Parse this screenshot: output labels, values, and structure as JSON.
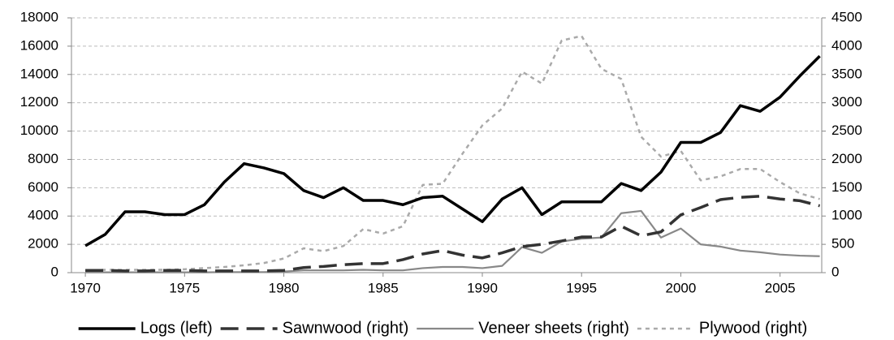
{
  "chart_data": {
    "type": "line",
    "x": [
      1970,
      1971,
      1972,
      1973,
      1974,
      1975,
      1976,
      1977,
      1978,
      1979,
      1980,
      1981,
      1982,
      1983,
      1984,
      1985,
      1986,
      1987,
      1988,
      1989,
      1990,
      1991,
      1992,
      1993,
      1994,
      1995,
      1996,
      1997,
      1998,
      1999,
      2000,
      2001,
      2002,
      2003,
      2004,
      2005,
      2006,
      2007
    ],
    "xlim": [
      1969.3,
      2007.1
    ],
    "xticks": [
      1970,
      1975,
      1980,
      1985,
      1990,
      1995,
      2000,
      2005
    ],
    "ylim": [
      0,
      18000
    ],
    "yticks": [
      0,
      2000,
      4000,
      6000,
      8000,
      10000,
      12000,
      14000,
      16000,
      18000
    ],
    "y2lim": [
      0,
      4500
    ],
    "y2ticks": [
      0,
      500,
      1000,
      1500,
      2000,
      2500,
      3000,
      3500,
      4000,
      4500
    ],
    "grid": true,
    "legend": "bottom",
    "series": [
      {
        "name": "Logs (left)",
        "color": "#000000",
        "line_style": "solid-thick",
        "values": [
          1900,
          2700,
          4300,
          4300,
          4100,
          4100,
          4800,
          6400,
          7700,
          7400,
          7000,
          5800,
          5300,
          6000,
          5100,
          5100,
          4800,
          5300,
          5400,
          4500,
          3600,
          5200,
          6000,
          4100,
          5000,
          5000,
          5000,
          6300,
          5800,
          7100,
          9200,
          9200,
          9900,
          11800,
          11400,
          12400,
          13900,
          15300
        ]
      },
      {
        "name": "Sawnwood (right)",
        "color": "#333333",
        "line_style": "long-dash",
        "axis": "y2",
        "values": [
          40,
          40,
          30,
          30,
          40,
          40,
          30,
          30,
          30,
          30,
          40,
          90,
          110,
          140,
          160,
          160,
          230,
          330,
          390,
          310,
          260,
          350,
          460,
          500,
          560,
          630,
          630,
          820,
          650,
          720,
          1020,
          1150,
          1290,
          1330,
          1350,
          1300,
          1270,
          1180
        ]
      },
      {
        "name": "Veneer sheets (right)",
        "color": "#888888",
        "line_style": "solid",
        "axis": "y2",
        "values": [
          5,
          5,
          5,
          5,
          5,
          5,
          5,
          10,
          10,
          10,
          20,
          40,
          40,
          40,
          50,
          40,
          40,
          80,
          100,
          100,
          80,
          120,
          450,
          350,
          550,
          600,
          620,
          1050,
          1090,
          620,
          780,
          500,
          460,
          390,
          360,
          320,
          300,
          290
        ]
      },
      {
        "name": "Plywood (right)",
        "color": "#aaaaaa",
        "line_style": "short-dash",
        "axis": "y2",
        "values": [
          40,
          50,
          50,
          50,
          50,
          60,
          80,
          100,
          130,
          170,
          250,
          430,
          380,
          470,
          770,
          690,
          820,
          1550,
          1570,
          2100,
          2600,
          2900,
          3550,
          3340,
          4100,
          4180,
          3600,
          3420,
          2400,
          2050,
          2150,
          1630,
          1700,
          1830,
          1830,
          1600,
          1400,
          1300
        ]
      }
    ]
  }
}
